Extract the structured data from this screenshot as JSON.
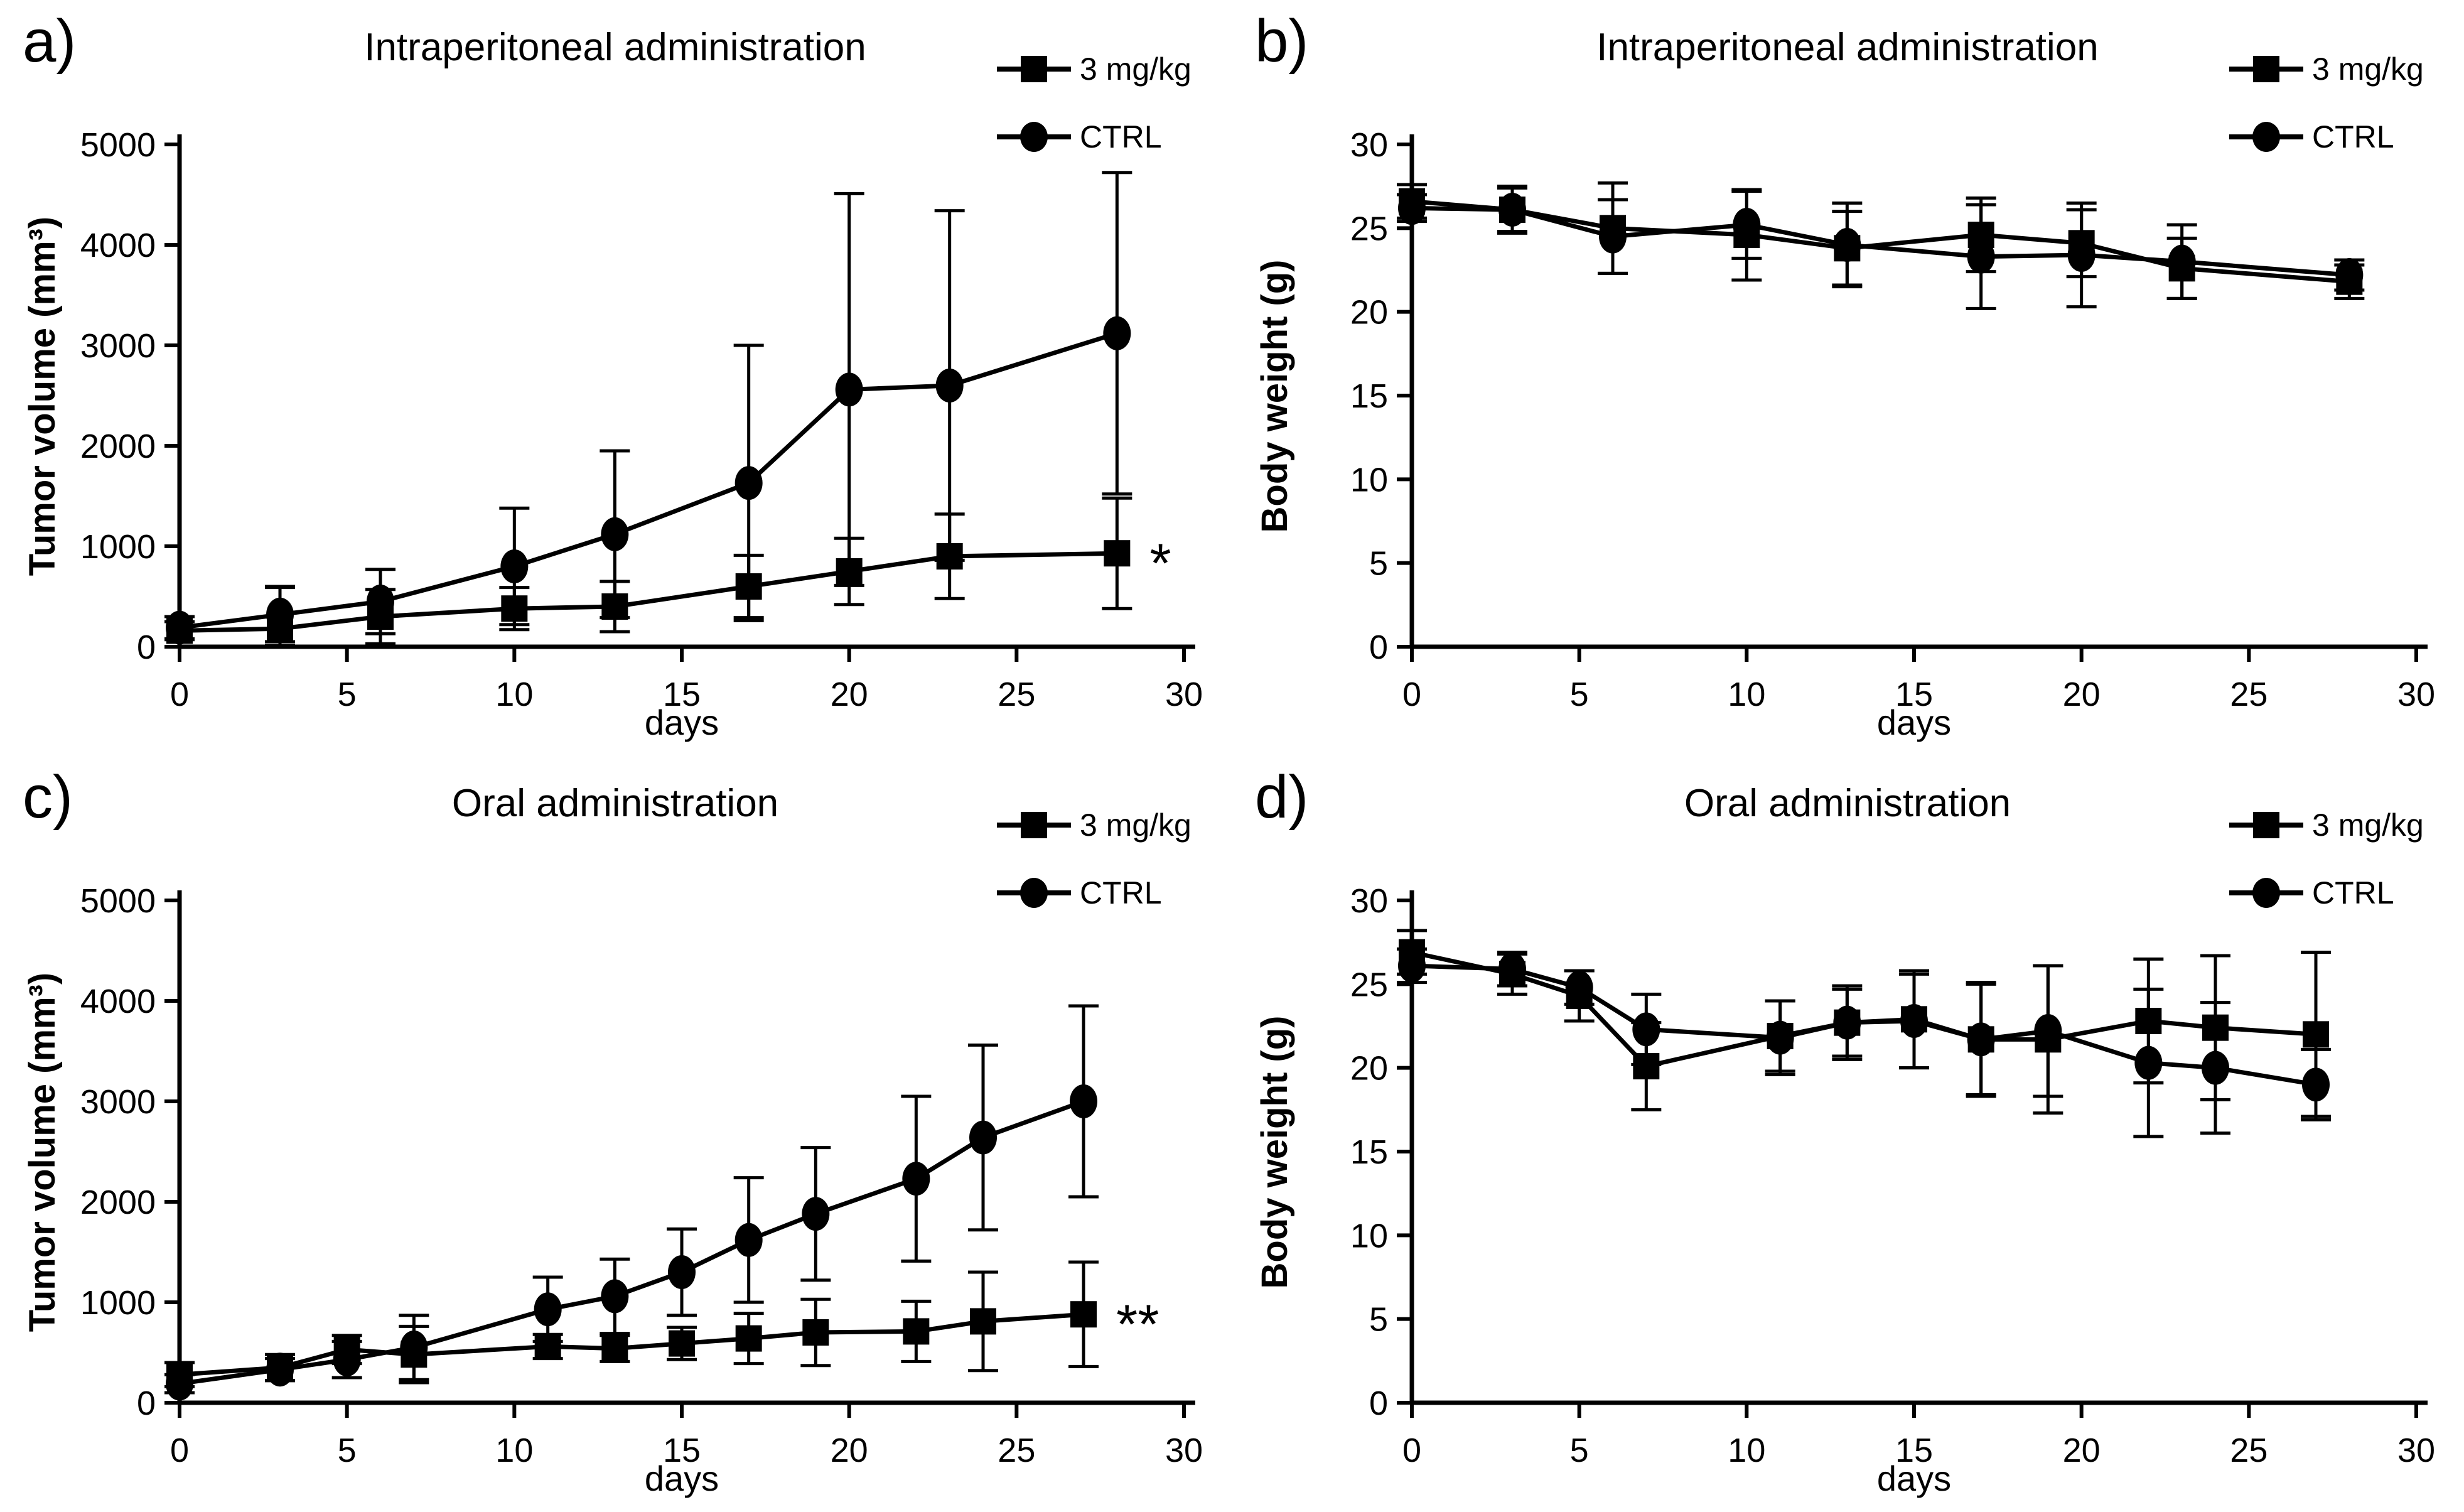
{
  "figure": {
    "background": "#ffffff",
    "ink_color": "#000000",
    "description": "Four-panel preclinical efficacy figure: tumor volume and body weight over time for intraperitoneal and oral administration"
  },
  "chart_data": [
    {
      "type": "line",
      "panel_label": "a)",
      "title": "Intraperitoneal administration",
      "xlabel": "days",
      "ylabel": "Tumor volume (mm³)",
      "xlim": [
        0,
        30
      ],
      "ylim": [
        0,
        5000
      ],
      "xticks": [
        0,
        5,
        10,
        15,
        20,
        25,
        30
      ],
      "yticks": [
        0,
        1000,
        2000,
        3000,
        4000,
        5000
      ],
      "grid": false,
      "legend_position": "top-right",
      "x": [
        0,
        3,
        6,
        10,
        13,
        17,
        20,
        23,
        28
      ],
      "series": [
        {
          "name": "3 mg/kg",
          "marker": "square",
          "values": [
            160,
            180,
            300,
            380,
            400,
            600,
            750,
            900,
            930
          ],
          "errors": [
            90,
            420,
            270,
            210,
            250,
            310,
            330,
            420,
            550
          ]
        },
        {
          "name": "CTRL",
          "marker": "circle",
          "values": [
            190,
            320,
            450,
            800,
            1120,
            1630,
            2560,
            2600,
            3120
          ],
          "errors": [
            110,
            270,
            320,
            580,
            830,
            1370,
            1950,
            1740,
            1600
          ]
        }
      ],
      "annotation": {
        "text": "*",
        "day": 28,
        "value": 930
      }
    },
    {
      "type": "line",
      "panel_label": "b)",
      "title": "Intraperitoneal administration",
      "xlabel": "days",
      "ylabel": "Body weight (g)",
      "xlim": [
        0,
        30
      ],
      "ylim": [
        0,
        30
      ],
      "xticks": [
        0,
        5,
        10,
        15,
        20,
        25,
        30
      ],
      "yticks": [
        0,
        5,
        10,
        15,
        20,
        25,
        30
      ],
      "grid": false,
      "legend_position": "top-right",
      "x": [
        0,
        3,
        6,
        10,
        13,
        17,
        20,
        23,
        28
      ],
      "series": [
        {
          "name": "3 mg/kg",
          "marker": "square",
          "values": [
            26.6,
            26.1,
            25.0,
            24.6,
            23.8,
            24.6,
            24.1,
            22.6,
            21.8
          ],
          "errors": [
            1.0,
            1.3,
            2.7,
            2.7,
            2.2,
            2.2,
            2.0,
            1.8,
            1.0
          ]
        },
        {
          "name": "CTRL",
          "marker": "circle",
          "values": [
            26.2,
            26.1,
            24.5,
            25.2,
            24.0,
            23.3,
            23.4,
            23.0,
            22.2
          ],
          "errors": [
            0.8,
            1.4,
            2.2,
            2.0,
            2.5,
            3.1,
            3.1,
            2.2,
            0.9
          ]
        }
      ]
    },
    {
      "type": "line",
      "panel_label": "c)",
      "title": "Oral administration",
      "xlabel": "days",
      "ylabel": "Tumor volume (mm³)",
      "xlim": [
        0,
        30
      ],
      "ylim": [
        0,
        5000
      ],
      "xticks": [
        0,
        5,
        10,
        15,
        20,
        25,
        30
      ],
      "yticks": [
        0,
        1000,
        2000,
        3000,
        4000,
        5000
      ],
      "grid": false,
      "legend_position": "top-right",
      "x": [
        0,
        3,
        5,
        7,
        11,
        13,
        15,
        17,
        19,
        22,
        24,
        27
      ],
      "series": [
        {
          "name": "3 mg/kg",
          "marker": "square",
          "values": [
            280,
            350,
            530,
            480,
            560,
            540,
            590,
            640,
            700,
            710,
            810,
            880
          ],
          "errors": [
            120,
            130,
            140,
            280,
            120,
            130,
            160,
            250,
            330,
            300,
            490,
            520
          ]
        },
        {
          "name": "CTRL",
          "marker": "circle",
          "values": [
            190,
            330,
            430,
            550,
            930,
            1060,
            1300,
            1620,
            1880,
            2230,
            2640,
            3000
          ],
          "errors": [
            90,
            110,
            180,
            320,
            320,
            370,
            430,
            620,
            660,
            820,
            920,
            950
          ]
        }
      ],
      "annotation": {
        "text": "**",
        "day": 27,
        "value": 880
      }
    },
    {
      "type": "line",
      "panel_label": "d)",
      "title": "Oral administration",
      "xlabel": "days",
      "ylabel": "Body weight (g)",
      "xlim": [
        0,
        30
      ],
      "ylim": [
        0,
        30
      ],
      "xticks": [
        0,
        5,
        10,
        15,
        20,
        25,
        30
      ],
      "yticks": [
        0,
        5,
        10,
        15,
        20,
        25,
        30
      ],
      "grid": false,
      "legend_position": "top-right",
      "x": [
        0,
        3,
        5,
        7,
        11,
        13,
        15,
        17,
        19,
        22,
        24,
        27
      ],
      "series": [
        {
          "name": "3 mg/kg",
          "marker": "square",
          "values": [
            26.9,
            25.6,
            24.3,
            20.1,
            21.9,
            22.7,
            22.9,
            21.7,
            21.7,
            22.8,
            22.4,
            22.0
          ],
          "errors": [
            1.3,
            1.2,
            1.5,
            2.6,
            2.1,
            2.2,
            2.9,
            3.3,
            4.4,
            3.7,
            4.3,
            4.9
          ]
        },
        {
          "name": "CTRL",
          "marker": "circle",
          "values": [
            26.1,
            25.9,
            24.8,
            22.3,
            21.8,
            22.7,
            22.8,
            21.7,
            22.2,
            20.3,
            20.0,
            19.0
          ],
          "errors": [
            1.0,
            1.0,
            1.0,
            2.1,
            2.2,
            2.0,
            2.8,
            3.4,
            3.9,
            4.4,
            3.9,
            2.1
          ]
        }
      ]
    }
  ]
}
